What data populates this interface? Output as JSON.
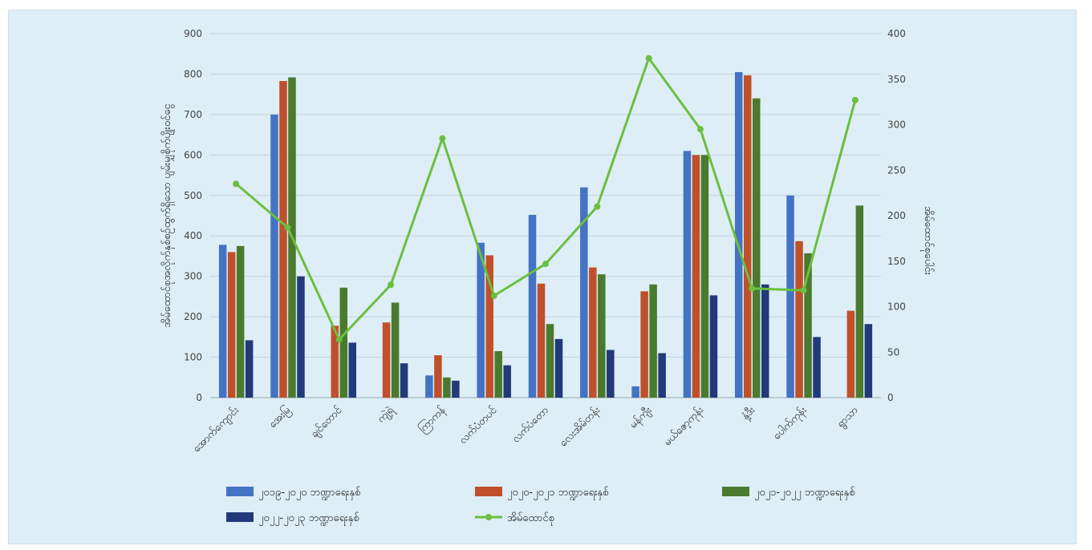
{
  "chart_data": {
    "type": "bar",
    "title": "",
    "categories": [
      "အောက်ကျောင်း",
      "အေးမြ",
      "ချင်တောင်",
      "ကျဲ့ရဲ",
      "ကြာကန်",
      "လက်ပံတပင်",
      "လက်ပံတော",
      "လေးအိမ်တန်း",
      "မန်ကျီး",
      "မယ်ဇော့ကုန်း",
      "နှံ့ဒီး",
      "ပေါက်ကုန်း",
      "ရွာသာ"
    ],
    "ylabel_left": "အိမ်ထောင်စုအလိုက်နှစ်စဉ်ထွက်ရှိသော ပျမ်းမျှစိုက်ပျိုးဝင်ငွေ",
    "ylabel_right": "အိမ်ထောင်စုပေါင်း",
    "ylim_left": [
      0,
      900
    ],
    "yticks_left": [
      0,
      100,
      200,
      300,
      400,
      500,
      600,
      700,
      800,
      900
    ],
    "ylim_right": [
      0,
      400
    ],
    "yticks_right": [
      0,
      50,
      100,
      150,
      200,
      250,
      300,
      350,
      400
    ],
    "grid": true,
    "legend_position": "bottom",
    "series": [
      {
        "name": "၂၀၁၉-၂၀၂၀ ဘဏ္ဍာရေးနှစ်",
        "color": "#4472c4",
        "axis": "left",
        "values": [
          378,
          700,
          null,
          null,
          55,
          383,
          452,
          520,
          28,
          610,
          805,
          500,
          null
        ]
      },
      {
        "name": "၂၀၂၀-၂၀၂၁ ဘဏ္ဍာရေးနှစ်",
        "color": "#c0502a",
        "axis": "left",
        "values": [
          360,
          783,
          178,
          186,
          105,
          352,
          282,
          322,
          263,
          600,
          797,
          387,
          215
        ]
      },
      {
        "name": "၂၀၂၁-၂၀၂၂ ဘဏ္ဍာရေးနှစ်",
        "color": "#4a7a2e",
        "axis": "left",
        "values": [
          375,
          792,
          272,
          235,
          50,
          115,
          182,
          305,
          280,
          600,
          740,
          357,
          475
        ]
      },
      {
        "name": "၂၀၂၂-၂၀၂၃ ဘဏ္ဍာရေးနှစ်",
        "color": "#22397a",
        "axis": "left",
        "values": [
          142,
          300,
          136,
          85,
          42,
          80,
          145,
          118,
          110,
          253,
          280,
          150,
          182
        ]
      }
    ],
    "line_series": {
      "name": "အိမ်ထောင်စု",
      "color": "#6bbf3f",
      "axis": "right",
      "values": [
        235,
        187,
        64,
        124,
        285,
        112,
        147,
        210,
        373,
        295,
        120,
        118,
        327
      ]
    }
  }
}
